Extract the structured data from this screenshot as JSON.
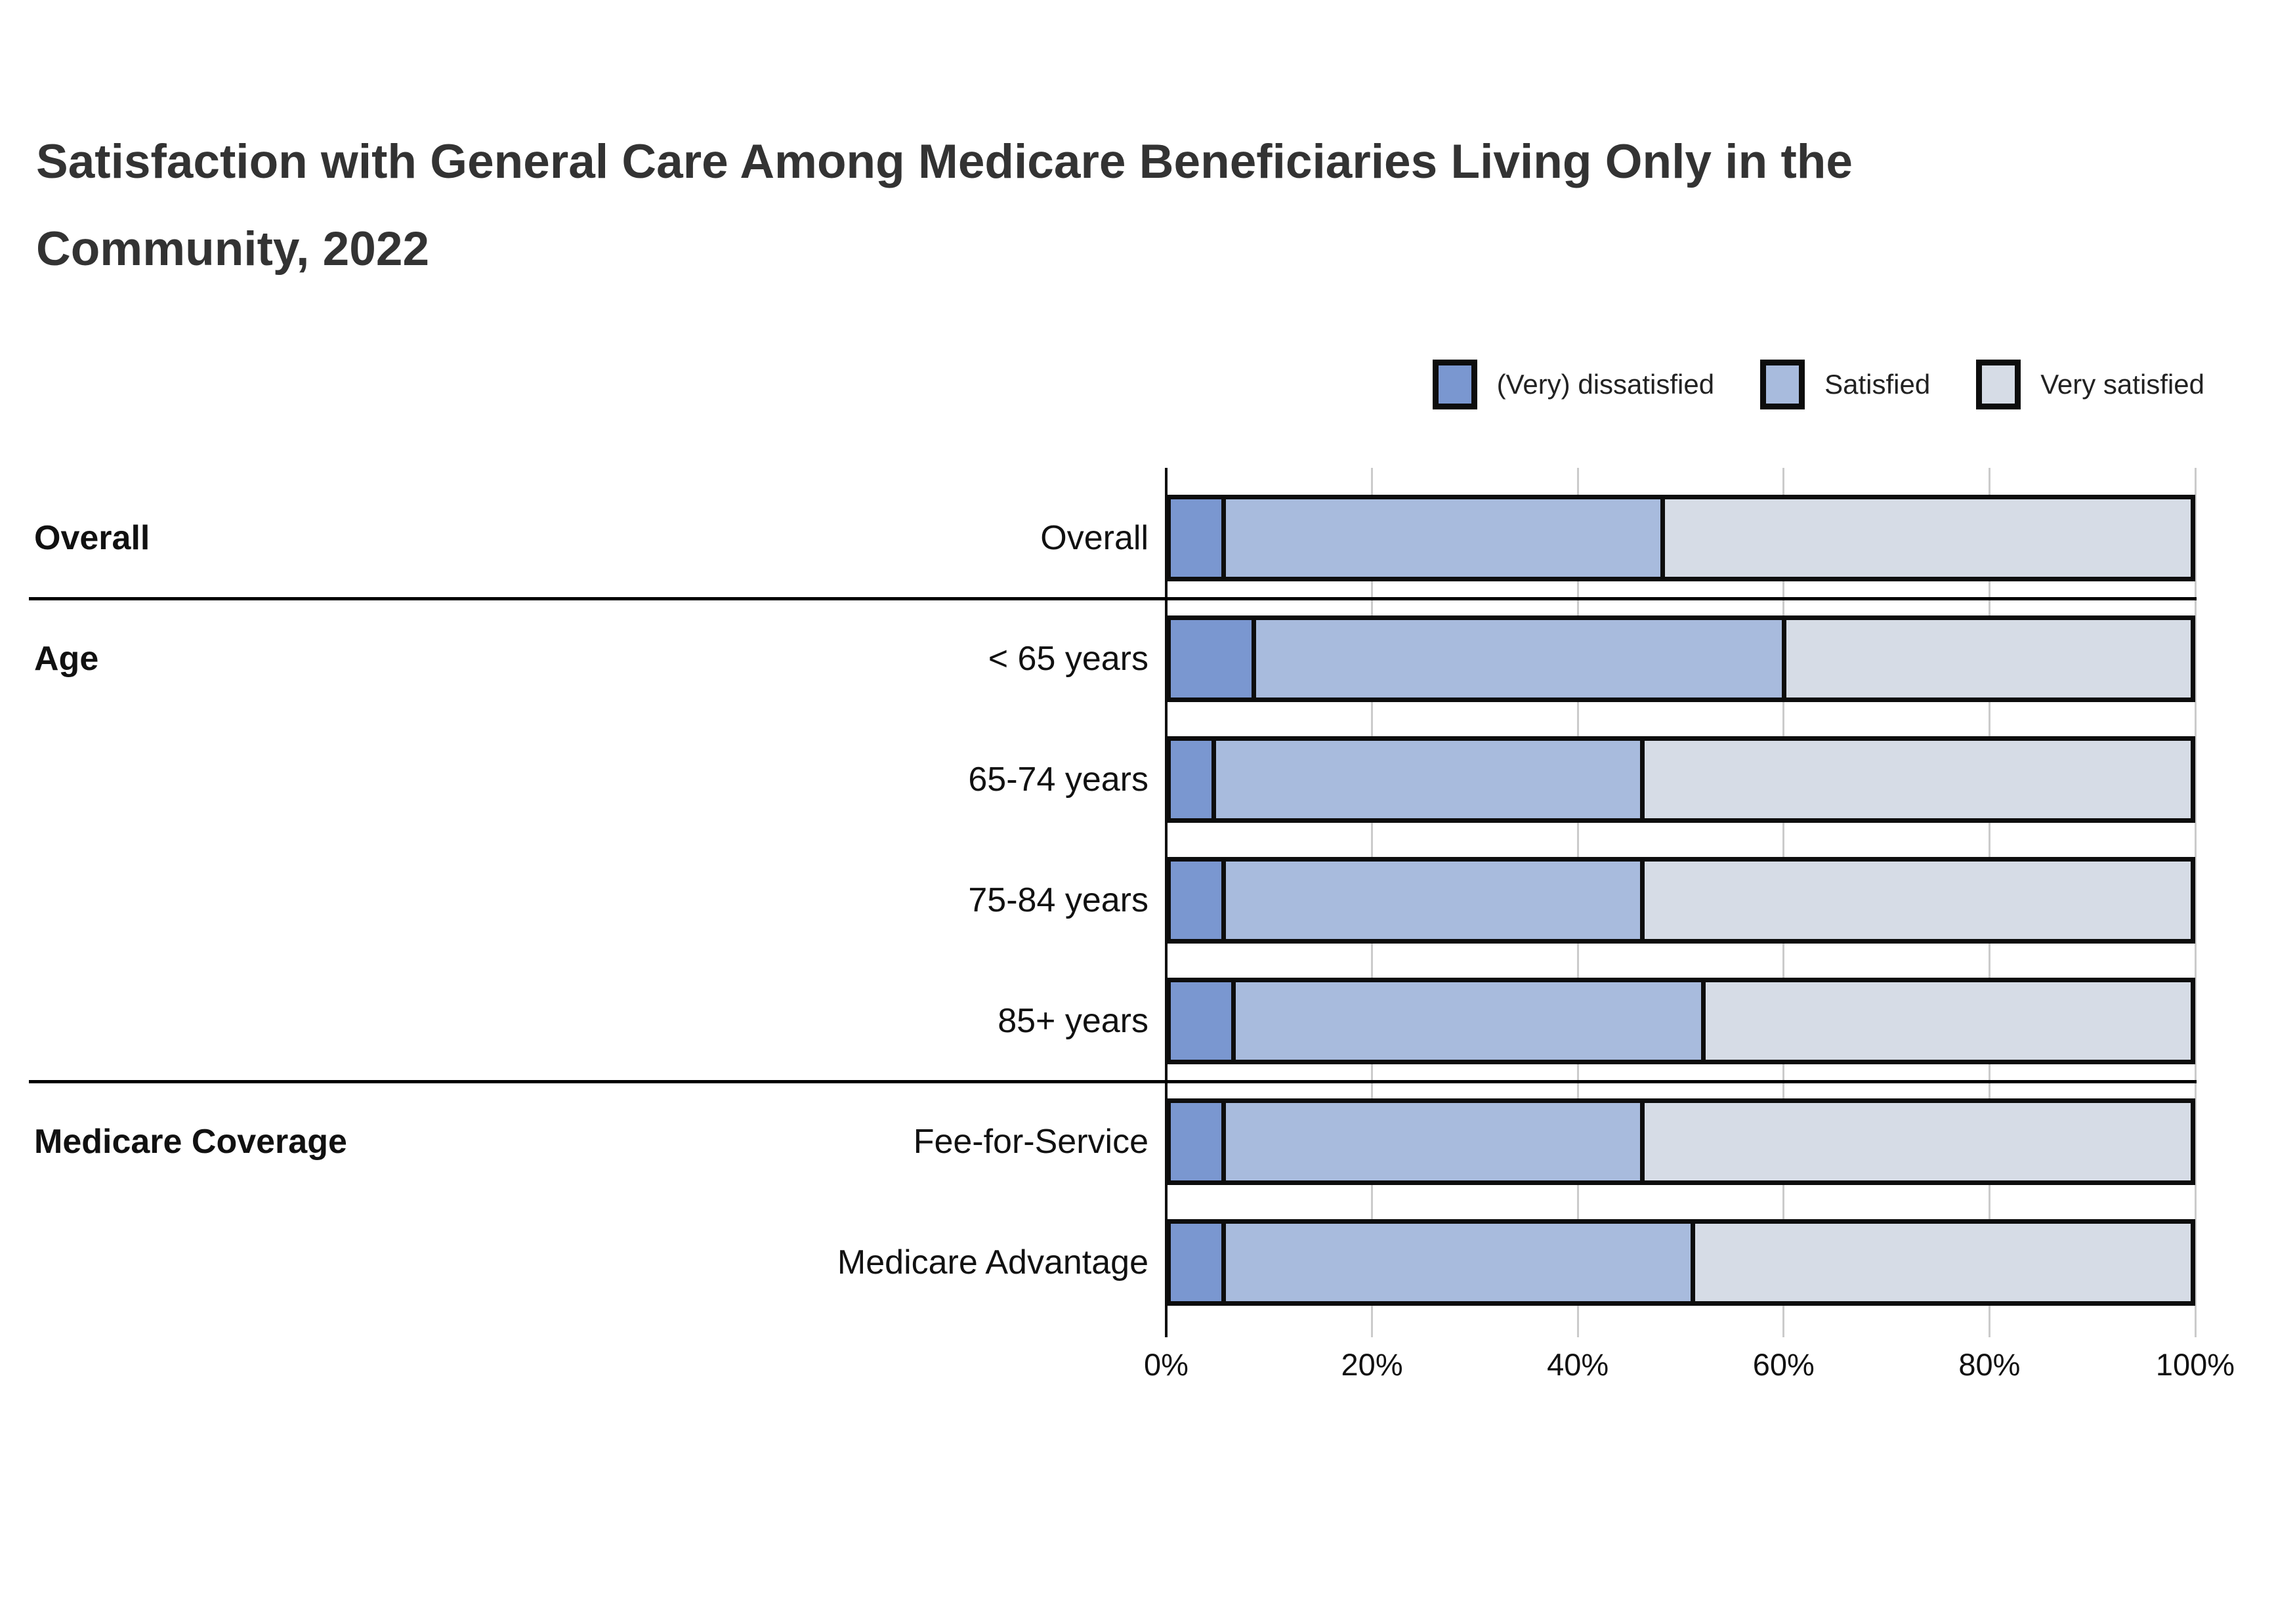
{
  "title": {
    "lines": [
      "Satisfaction with General Care Among Medicare Beneficiaries Living Only in the",
      "Community, 2022"
    ]
  },
  "legend": {
    "items": [
      {
        "label": "(Very) dissatisfied",
        "color": "#7A97D0"
      },
      {
        "label": "Satisfied",
        "color": "#A8BBDD"
      },
      {
        "label": "Very satisfied",
        "color": "#D6DCE6"
      }
    ]
  },
  "chart_data": {
    "type": "bar",
    "stacked": true,
    "orientation": "horizontal",
    "unit": "percent",
    "title": "Satisfaction with General Care Among Medicare Beneficiaries Living Only in the Community, 2022",
    "series_names": [
      "(Very) dissatisfied",
      "Satisfied",
      "Very satisfied"
    ],
    "colors": [
      "#7A97D0",
      "#A8BBDD",
      "#D6DCE6"
    ],
    "grid": true,
    "legend_position": "top-right",
    "x_axis": {
      "min": 0,
      "max": 100,
      "ticks": [
        "0%",
        "20%",
        "40%",
        "60%",
        "80%",
        "100%"
      ],
      "tick_values": [
        0,
        20,
        40,
        60,
        80,
        100
      ]
    },
    "groups": [
      {
        "group": "Overall",
        "rows": [
          {
            "label": "Overall",
            "values": [
              5,
              43,
              52
            ]
          }
        ]
      },
      {
        "group": "Age",
        "rows": [
          {
            "label": "< 65 years",
            "values": [
              8,
              52,
              40
            ]
          },
          {
            "label": "65-74 years",
            "values": [
              4,
              42,
              54
            ]
          },
          {
            "label": "75-84 years",
            "values": [
              5,
              41,
              54
            ]
          },
          {
            "label": "85+ years",
            "values": [
              6,
              46,
              48
            ]
          }
        ]
      },
      {
        "group": "Medicare Coverage",
        "rows": [
          {
            "label": "Fee-for-Service",
            "values": [
              5,
              41,
              54
            ]
          },
          {
            "label": "Medicare Advantage",
            "values": [
              5,
              46,
              49
            ]
          }
        ]
      }
    ]
  }
}
